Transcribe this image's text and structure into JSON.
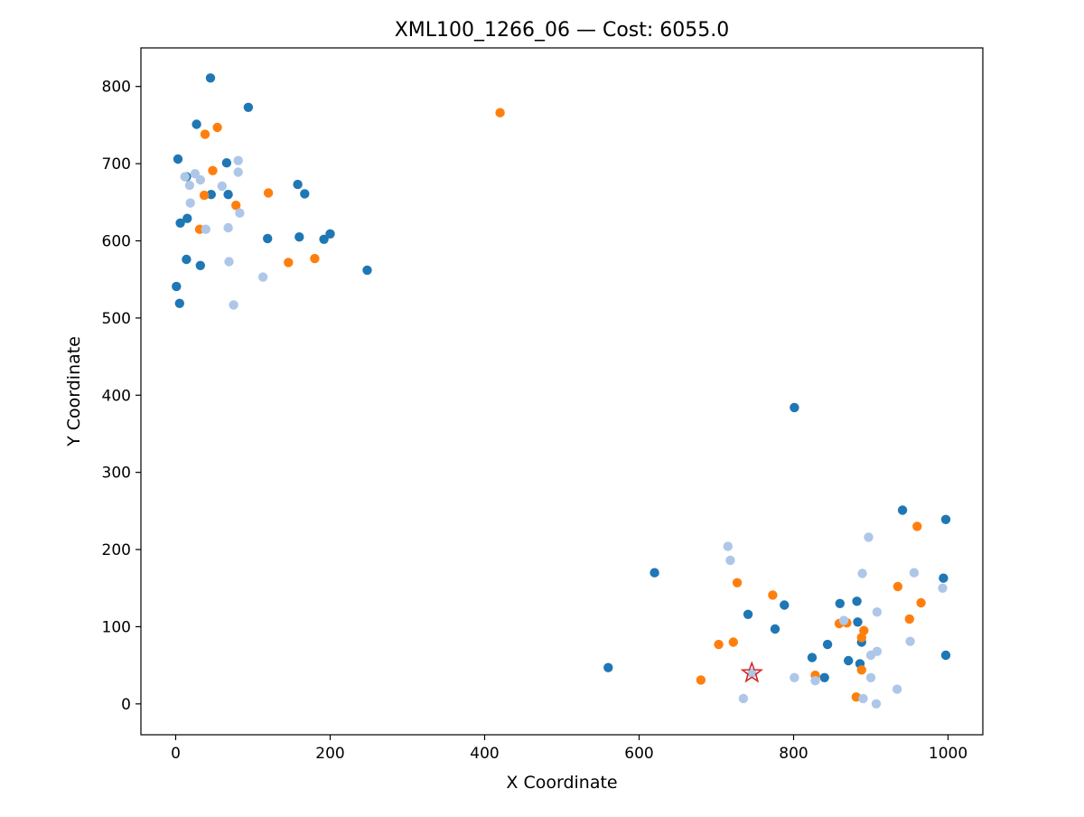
{
  "chart_data": {
    "type": "scatter",
    "title": "XML100_1266_06  —  Cost: 6055.0",
    "xlabel": "X Coordinate",
    "ylabel": "Y Coordinate",
    "xlim": [
      -45,
      1045
    ],
    "ylim": [
      -40,
      850
    ],
    "xticks": [
      0,
      200,
      400,
      600,
      800,
      1000
    ],
    "yticks": [
      0,
      100,
      200,
      300,
      400,
      500,
      600,
      700,
      800
    ],
    "grid": false,
    "colors": {
      "dark_blue": "#1f77b4",
      "orange": "#ff7f0e",
      "light_blue": "#aec7e8",
      "depot": "#d62728"
    },
    "series": [
      {
        "color": "#1f77b4",
        "points": [
          [
            45,
            811
          ],
          [
            94,
            773
          ],
          [
            27,
            751
          ],
          [
            3,
            706
          ],
          [
            66,
            701
          ],
          [
            14,
            683
          ],
          [
            46,
            660
          ],
          [
            68,
            660
          ],
          [
            158,
            673
          ],
          [
            167,
            661
          ],
          [
            15,
            629
          ],
          [
            6,
            623
          ],
          [
            119,
            603
          ],
          [
            160,
            605
          ],
          [
            192,
            602
          ],
          [
            200,
            609
          ],
          [
            14,
            576
          ],
          [
            32,
            568
          ],
          [
            248,
            562
          ],
          [
            1,
            541
          ],
          [
            5,
            519
          ],
          [
            801,
            384
          ],
          [
            941,
            251
          ],
          [
            997,
            239
          ],
          [
            620,
            170
          ],
          [
            994,
            163
          ],
          [
            860,
            130
          ],
          [
            882,
            133
          ],
          [
            788,
            128
          ],
          [
            741,
            116
          ],
          [
            883,
            106
          ],
          [
            776,
            97
          ],
          [
            844,
            77
          ],
          [
            888,
            80
          ],
          [
            824,
            60
          ],
          [
            871,
            56
          ],
          [
            886,
            52
          ],
          [
            840,
            34
          ],
          [
            560,
            47
          ],
          [
            997,
            63
          ]
        ]
      },
      {
        "color": "#ff7f0e",
        "points": [
          [
            420,
            766
          ],
          [
            54,
            747
          ],
          [
            38,
            738
          ],
          [
            48,
            691
          ],
          [
            120,
            662
          ],
          [
            37,
            659
          ],
          [
            78,
            646
          ],
          [
            31,
            615
          ],
          [
            146,
            572
          ],
          [
            180,
            577
          ],
          [
            960,
            230
          ],
          [
            935,
            152
          ],
          [
            965,
            131
          ],
          [
            727,
            157
          ],
          [
            773,
            141
          ],
          [
            859,
            104
          ],
          [
            869,
            105
          ],
          [
            950,
            110
          ],
          [
            891,
            95
          ],
          [
            888,
            86
          ],
          [
            722,
            80
          ],
          [
            703,
            77
          ],
          [
            888,
            44
          ],
          [
            828,
            37
          ],
          [
            680,
            31
          ],
          [
            881,
            9
          ]
        ]
      },
      {
        "color": "#aec7e8",
        "points": [
          [
            81,
            704
          ],
          [
            12,
            683
          ],
          [
            25,
            687
          ],
          [
            32,
            679
          ],
          [
            81,
            689
          ],
          [
            18,
            672
          ],
          [
            60,
            671
          ],
          [
            19,
            649
          ],
          [
            83,
            636
          ],
          [
            39,
            615
          ],
          [
            68,
            617
          ],
          [
            69,
            573
          ],
          [
            113,
            553
          ],
          [
            75,
            517
          ],
          [
            897,
            216
          ],
          [
            715,
            204
          ],
          [
            718,
            186
          ],
          [
            889,
            169
          ],
          [
            956,
            170
          ],
          [
            993,
            150
          ],
          [
            908,
            119
          ],
          [
            865,
            108
          ],
          [
            951,
            81
          ],
          [
            908,
            68
          ],
          [
            900,
            63
          ],
          [
            801,
            34
          ],
          [
            828,
            30
          ],
          [
            900,
            34
          ],
          [
            746,
            40
          ],
          [
            934,
            19
          ],
          [
            735,
            7
          ],
          [
            890,
            7
          ],
          [
            907,
            0
          ]
        ]
      }
    ],
    "depot": [
      746,
      40
    ]
  }
}
